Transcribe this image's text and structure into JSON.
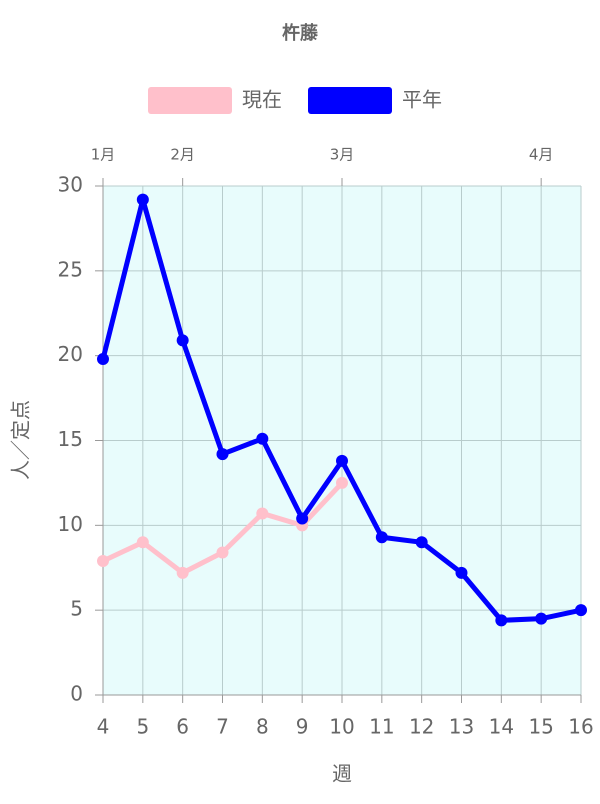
{
  "chart_data": {
    "type": "line",
    "title": "杵藤",
    "x_label": "週",
    "y_label": "人／定点",
    "x": [
      4,
      5,
      6,
      7,
      8,
      9,
      10,
      11,
      12,
      13,
      14,
      15,
      16
    ],
    "series": [
      {
        "name": "現在",
        "color": "#ffc0cb",
        "values": [
          7.9,
          9.0,
          7.2,
          8.4,
          10.7,
          10.0,
          12.5,
          null,
          null,
          null,
          null,
          null,
          null
        ]
      },
      {
        "name": "平年",
        "color": "#0000ff",
        "values": [
          19.8,
          29.2,
          20.9,
          14.2,
          15.1,
          10.4,
          13.8,
          9.3,
          9.0,
          7.2,
          4.4,
          4.5,
          5.0
        ]
      }
    ],
    "xlim": [
      4,
      16
    ],
    "xticks": [
      4,
      5,
      6,
      7,
      8,
      9,
      10,
      11,
      12,
      13,
      14,
      15,
      16
    ],
    "x2ticks": [
      {
        "value": 4,
        "label": "1月"
      },
      {
        "value": 6,
        "label": "2月"
      },
      {
        "value": 10,
        "label": "3月"
      },
      {
        "value": 15,
        "label": "4月"
      }
    ],
    "ylim": [
      0,
      30
    ],
    "yticks": [
      0,
      5,
      10,
      15,
      20,
      25,
      30
    ],
    "grid": true,
    "background": "#e8fcfc",
    "legend": "top"
  }
}
